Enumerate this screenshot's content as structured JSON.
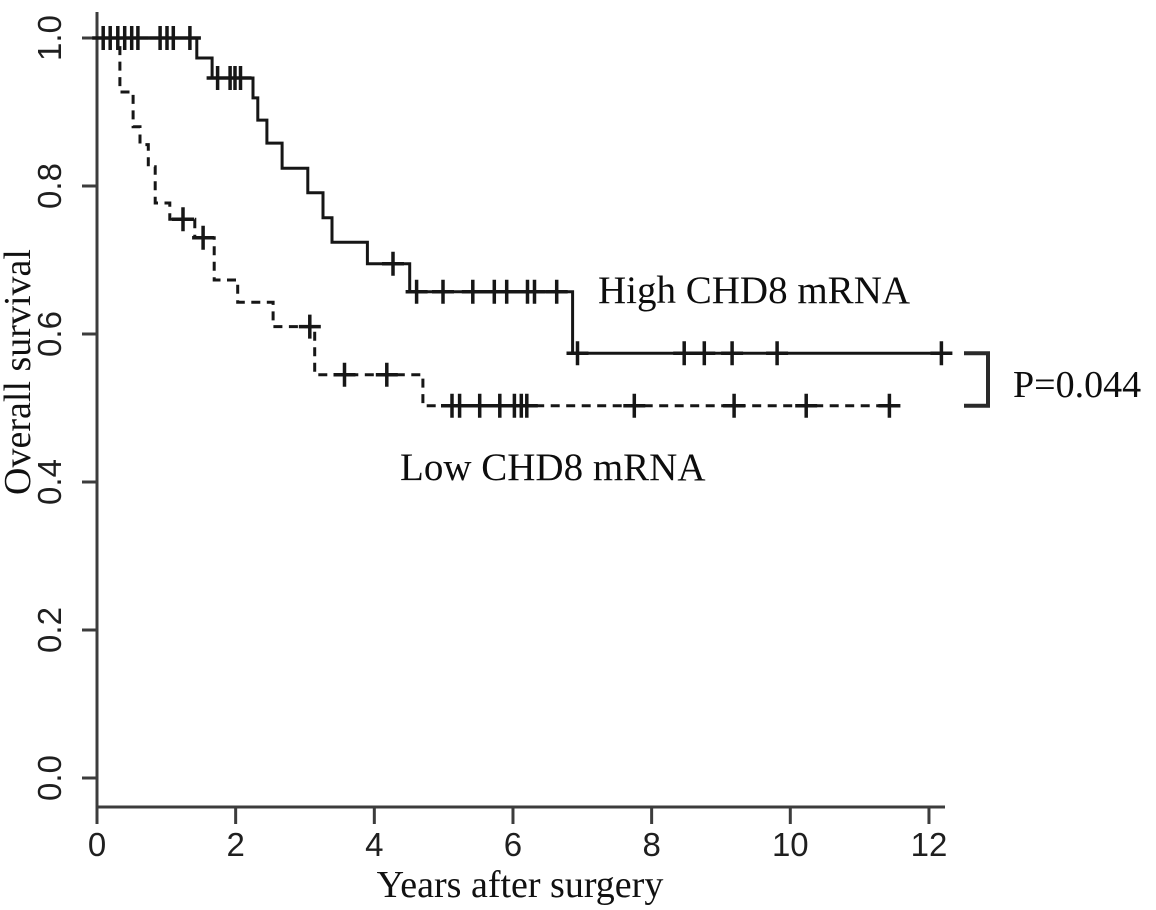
{
  "figure": {
    "ylabel": "Overall survival",
    "xlabel": "Years after surgery",
    "high_label": "High CHD8 mRNA",
    "low_label": "Low CHD8 mRNA",
    "p_value": "P=0.044"
  },
  "chart_data": {
    "type": "line",
    "subtype": "kaplan-meier-step",
    "title": "",
    "xlabel": "Years after surgery",
    "ylabel": "Overall survival",
    "xlim": [
      0,
      12
    ],
    "ylim": [
      0.0,
      1.0
    ],
    "grid": false,
    "xticks": [
      0,
      2,
      4,
      6,
      8,
      10,
      12
    ],
    "xtick_labels": [
      "0",
      "2",
      "4",
      "6",
      "8",
      "10",
      "12"
    ],
    "yticks": [
      0.0,
      0.2,
      0.4,
      0.6,
      0.8,
      1.0
    ],
    "ytick_labels": [
      "0.0",
      "0.2",
      "0.4",
      "0.6",
      "0.8",
      "1.0"
    ],
    "annotation": "P=0.044",
    "series": [
      {
        "name": "High CHD8 mRNA",
        "style": "solid",
        "steps": [
          [
            0,
            1.0
          ],
          [
            1.44,
            0.973
          ],
          [
            1.66,
            0.946
          ],
          [
            2.25,
            0.919
          ],
          [
            2.32,
            0.889
          ],
          [
            2.45,
            0.858
          ],
          [
            2.67,
            0.824
          ],
          [
            3.04,
            0.791
          ],
          [
            3.26,
            0.757
          ],
          [
            3.39,
            0.724
          ],
          [
            3.9,
            0.695
          ],
          [
            4.51,
            0.657
          ],
          [
            6.86,
            0.574
          ]
        ],
        "end_t": 12.3,
        "censors": [
          0.09,
          0.19,
          0.3,
          0.4,
          0.5,
          0.59,
          0.91,
          1.01,
          1.1,
          1.34,
          1.74,
          1.92,
          1.99,
          2.07,
          4.27,
          4.61,
          4.99,
          5.42,
          5.73,
          5.91,
          6.21,
          6.31,
          6.63,
          6.93,
          8.47,
          8.76,
          9.16,
          9.81,
          12.18
        ]
      },
      {
        "name": "Low CHD8 mRNA",
        "style": "dashed",
        "steps": [
          [
            0,
            1.0
          ],
          [
            0.33,
            0.927
          ],
          [
            0.52,
            0.88
          ],
          [
            0.62,
            0.856
          ],
          [
            0.74,
            0.826
          ],
          [
            0.84,
            0.777
          ],
          [
            1.05,
            0.755
          ],
          [
            1.41,
            0.73
          ],
          [
            1.69,
            0.673
          ],
          [
            2.03,
            0.643
          ],
          [
            2.54,
            0.61
          ],
          [
            3.14,
            0.545
          ],
          [
            4.7,
            0.503
          ]
        ],
        "end_t": 11.56,
        "censors": [
          1.24,
          1.53,
          3.07,
          3.57,
          4.18,
          5.12,
          5.23,
          5.52,
          5.81,
          6.02,
          6.12,
          6.2,
          7.75,
          9.19,
          10.23,
          11.43
        ]
      }
    ],
    "legend_position": "inline-annotations",
    "comparison": {
      "p_value_text": "P=0.044",
      "bracket_top_survival": 0.574,
      "bracket_bottom_survival": 0.503
    }
  },
  "colors": {
    "background": "#ffffff",
    "curve": "#161616",
    "axis": "#3c3c3c",
    "text": "#111111"
  }
}
